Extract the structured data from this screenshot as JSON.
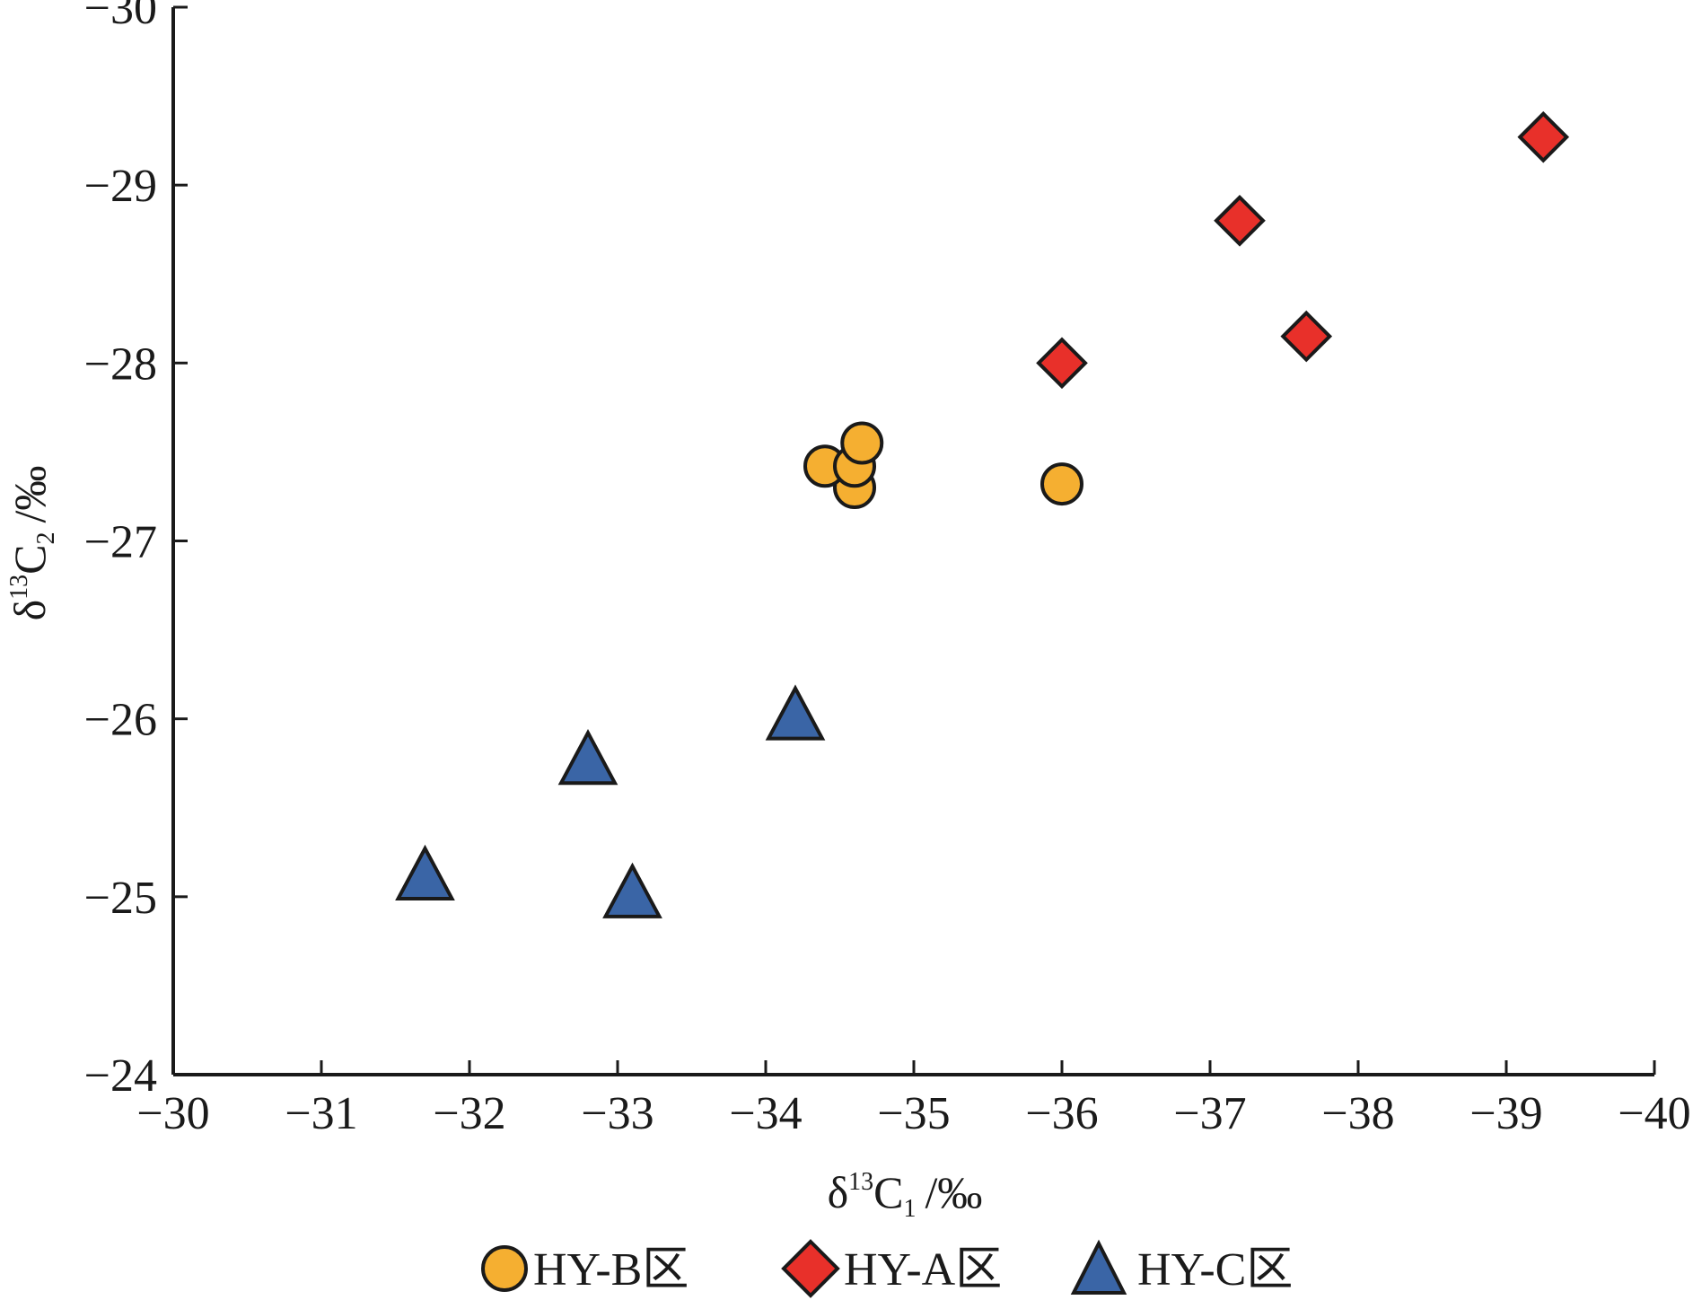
{
  "chart_data": {
    "type": "scatter",
    "title": "",
    "xlabel": {
      "delta": "δ",
      "sup": "13",
      "base": "C",
      "sub": "1",
      "unit": "/‰"
    },
    "ylabel": {
      "delta": "δ",
      "sup": "13",
      "base": "C",
      "sub": "2",
      "unit": "/‰"
    },
    "xlim": [
      -30,
      -40
    ],
    "ylim": [
      -24,
      -30
    ],
    "x_reversed": true,
    "y_reversed": true,
    "x_ticks": [
      -30,
      -31,
      -32,
      -33,
      -34,
      -35,
      -36,
      -37,
      -38,
      -39,
      -40
    ],
    "x_tick_labels": [
      "−30",
      "−31",
      "−32",
      "−33",
      "−34",
      "−35",
      "−36",
      "−37",
      "−38",
      "−39",
      "−40"
    ],
    "y_ticks": [
      -24,
      -25,
      -26,
      -27,
      -28,
      -29,
      -30
    ],
    "y_tick_labels": [
      "−24",
      "−25",
      "−26",
      "−27",
      "−28",
      "−29",
      "−30"
    ],
    "grid": false,
    "legend_position": "bottom",
    "series": [
      {
        "name": "HY-B区",
        "marker": "circle",
        "color": "#F5AF31",
        "points": [
          {
            "x": -34.6,
            "y": -27.3
          },
          {
            "x": -34.4,
            "y": -27.42
          },
          {
            "x": -34.6,
            "y": -27.42
          },
          {
            "x": -34.65,
            "y": -27.55
          },
          {
            "x": -36.0,
            "y": -27.32
          }
        ]
      },
      {
        "name": "HY-A区",
        "marker": "diamond",
        "color": "#E8302A",
        "points": [
          {
            "x": -36.0,
            "y": -28.0
          },
          {
            "x": -37.2,
            "y": -28.8
          },
          {
            "x": -37.65,
            "y": -28.15
          },
          {
            "x": -39.25,
            "y": -29.27
          }
        ]
      },
      {
        "name": "HY-C区",
        "marker": "triangle",
        "color": "#3A65A6",
        "points": [
          {
            "x": -31.7,
            "y": -25.1
          },
          {
            "x": -32.8,
            "y": -25.75
          },
          {
            "x": -33.1,
            "y": -25.0
          },
          {
            "x": -34.2,
            "y": -26.0
          }
        ]
      }
    ]
  }
}
